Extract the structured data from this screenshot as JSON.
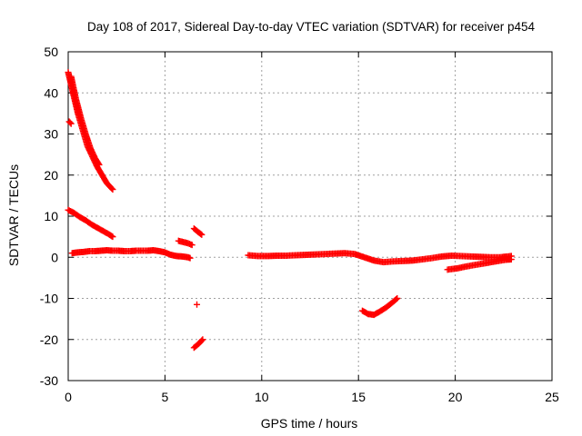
{
  "chart_data": {
    "type": "scatter",
    "title": "Day 108 of 2017, Sidereal Day-to-day VTEC variation (SDTVAR) for receiver p454",
    "xlabel": "GPS time / hours",
    "ylabel": "SDTVAR / TECUs",
    "xlim": [
      0,
      25
    ],
    "ylim": [
      -30,
      50
    ],
    "xticks": [
      "0",
      "5",
      "10",
      "15",
      "20",
      "25"
    ],
    "yticks": [
      "-30",
      "-20",
      "-10",
      "0",
      "10",
      "20",
      "30",
      "40",
      "50"
    ],
    "grid": true,
    "marker": "plus",
    "color": "#ff0000",
    "series": [
      {
        "segments": [
          {
            "x": [
              0.0,
              0.25,
              0.5,
              0.75,
              1.0,
              1.25,
              1.5,
              1.75,
              2.0,
              2.3
            ],
            "y": [
              45,
              40,
              35,
              31,
              27,
              24.5,
              22,
              20,
              18,
              16.5
            ]
          },
          {
            "x": [
              0.15,
              0.4,
              0.65,
              0.9,
              1.15,
              1.4,
              1.6
            ],
            "y": [
              44,
              38.5,
              34,
              30,
              26.5,
              24,
              22.5
            ]
          },
          {
            "x": [
              0.05,
              0.15
            ],
            "y": [
              33,
              32.5
            ]
          },
          {
            "x": [
              0.0,
              0.3,
              0.6,
              0.9,
              1.2,
              1.5,
              1.8,
              2.1,
              2.3
            ],
            "y": [
              11.5,
              10.8,
              9.8,
              9.0,
              8.0,
              7.2,
              6.4,
              5.6,
              5.0
            ]
          },
          {
            "x": [
              0.2,
              0.5,
              0.8,
              1.1,
              1.4,
              1.7,
              2.0,
              2.3,
              2.6,
              2.9,
              3.2,
              3.5,
              3.8,
              4.1,
              4.4,
              4.7,
              5.0,
              5.3,
              5.6,
              5.9,
              6.2,
              6.3
            ],
            "y": [
              1.0,
              1.2,
              1.3,
              1.5,
              1.5,
              1.6,
              1.7,
              1.6,
              1.6,
              1.5,
              1.5,
              1.6,
              1.6,
              1.6,
              1.7,
              1.5,
              1.2,
              0.6,
              0.3,
              0.2,
              0.0,
              -0.2
            ]
          },
          {
            "x": [
              5.7,
              5.95,
              6.2,
              6.4
            ],
            "y": [
              4.0,
              3.7,
              3.4,
              3.0
            ]
          },
          {
            "x": [
              6.5,
              6.7,
              6.9
            ],
            "y": [
              7.0,
              6.2,
              5.5
            ]
          },
          {
            "x": [
              6.65
            ],
            "y": [
              -11.5
            ]
          },
          {
            "x": [
              6.5,
              6.75,
              6.95
            ],
            "y": [
              -22,
              -21,
              -20
            ]
          },
          {
            "x": [
              9.3,
              9.8,
              10.3,
              10.8,
              11.3,
              11.8,
              12.3,
              12.8,
              13.3,
              13.8,
              14.3,
              14.8,
              15.3,
              15.8,
              16.3,
              16.8,
              17.3,
              17.8,
              18.3,
              18.8,
              19.3,
              19.8,
              20.3,
              20.8,
              21.3,
              21.8,
              22.3,
              22.9
            ],
            "y": [
              0.5,
              0.3,
              0.3,
              0.4,
              0.4,
              0.5,
              0.6,
              0.7,
              0.8,
              0.9,
              1.0,
              0.8,
              0.0,
              -0.8,
              -1.2,
              -1.0,
              -0.9,
              -0.8,
              -0.5,
              -0.2,
              0.2,
              0.4,
              0.3,
              0.2,
              0.1,
              0.0,
              0.0,
              0.3
            ]
          },
          {
            "x": [
              19.6,
              20.1,
              20.6,
              21.1,
              21.6,
              22.1,
              22.6,
              22.9
            ],
            "y": [
              -3.0,
              -2.7,
              -2.2,
              -1.8,
              -1.4,
              -1.0,
              -0.6,
              -0.5
            ]
          },
          {
            "x": [
              15.2,
              15.5,
              15.8,
              16.1,
              16.4,
              16.7,
              17.0
            ],
            "y": [
              -13,
              -13.8,
              -14,
              -13.2,
              -12.3,
              -11.2,
              -10
            ]
          }
        ]
      }
    ]
  }
}
